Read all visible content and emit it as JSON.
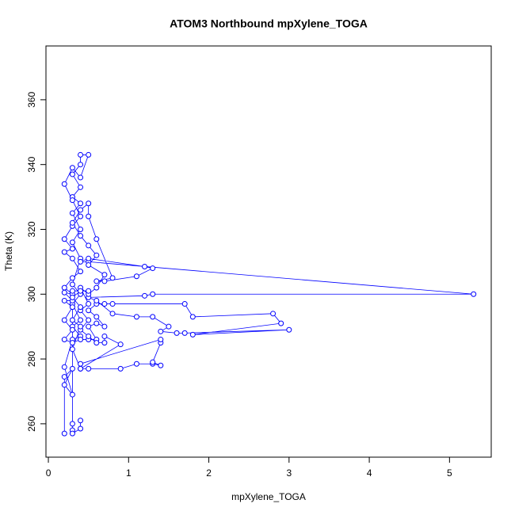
{
  "chart_data": {
    "type": "line",
    "title": "ATOM3 Northbound mpXylene_TOGA",
    "x_label": "mpXylene_TOGA",
    "y_label": "Theta (K)",
    "color": "#0000ff",
    "markers": true,
    "xlim": [
      -0.03,
      5.52
    ],
    "xticks": [
      0,
      1,
      2,
      3,
      4,
      5
    ],
    "ylim": [
      249.7,
      376.6
    ],
    "yticks": [
      260,
      280,
      300,
      320,
      340,
      360
    ],
    "x": [
      0.2,
      0.2,
      0.3,
      0.2,
      0.3,
      0.2,
      0.3,
      0.4,
      0.3,
      0.4,
      0.3,
      0.4,
      0.3,
      0.4,
      0.3,
      0.4,
      0.3,
      0.4,
      0.3,
      0.4,
      0.3,
      0.4,
      0.4,
      0.5,
      0.4,
      0.3,
      0.2,
      0.3,
      0.4,
      0.3,
      0.2,
      0.3,
      0.2,
      0.3,
      0.4,
      0.3,
      0.2,
      0.3,
      0.2,
      0.3,
      0.2,
      0.3,
      0.2,
      0.3,
      0.2,
      0.3,
      0.4,
      0.5,
      0.6,
      0.5,
      0.6,
      0.7,
      0.6,
      0.5,
      0.6,
      0.7,
      0.8,
      1.7,
      1.8,
      2.8,
      2.9,
      1.8,
      3.0,
      1.7,
      1.6,
      1.4,
      1.5,
      1.3,
      1.1,
      0.8,
      0.6,
      0.5,
      1.2,
      1.3,
      5.3,
      0.5,
      0.4,
      0.5,
      1.2,
      1.3,
      1.1,
      0.7,
      0.6,
      0.8,
      0.6,
      0.5,
      0.5,
      0.4,
      0.3,
      0.4,
      0.5,
      0.6,
      0.5,
      0.7,
      0.6,
      0.5,
      0.4,
      0.5,
      0.4,
      0.5,
      0.4,
      0.5,
      0.6,
      0.7,
      0.7,
      0.9,
      0.4,
      0.5,
      0.9,
      1.1,
      1.3,
      1.4,
      1.3,
      1.4,
      1.4,
      0.4,
      0.4,
      0.3,
      0.4,
      0.3,
      0.4,
      0.3,
      0.4,
      0.5,
      0.3,
      0.3,
      0.3,
      0.3,
      0.4,
      0.4
    ],
    "values": [
      257,
      274.5,
      277,
      272,
      269,
      277.5,
      286,
      287,
      290,
      292,
      297,
      300,
      303,
      311,
      316,
      320,
      325,
      328,
      330,
      333,
      337,
      340,
      343,
      343,
      336,
      339,
      334,
      329,
      324,
      321,
      317,
      314,
      313,
      311,
      307,
      305,
      302,
      300,
      300.5,
      298,
      298,
      296,
      292,
      289,
      286,
      285,
      286,
      286,
      286,
      290,
      291,
      290,
      293,
      295,
      297,
      297,
      297,
      297,
      293,
      294,
      291,
      287.5,
      289,
      288,
      288,
      288.5,
      290,
      293,
      293,
      294,
      298,
      299,
      299.5,
      300,
      300,
      310,
      310,
      311,
      308.5,
      308,
      305.5,
      304,
      304,
      305,
      317,
      324,
      328,
      326,
      322,
      318,
      315,
      312,
      309,
      306,
      302,
      300,
      302,
      297,
      295,
      292,
      289,
      287,
      285,
      285,
      287,
      284.5,
      277,
      277,
      277,
      278.5,
      278.5,
      278,
      279,
      285,
      286,
      278.5,
      277,
      283,
      290,
      292,
      296,
      299,
      301,
      301,
      301,
      260,
      258,
      257,
      258.5,
      261
    ]
  }
}
